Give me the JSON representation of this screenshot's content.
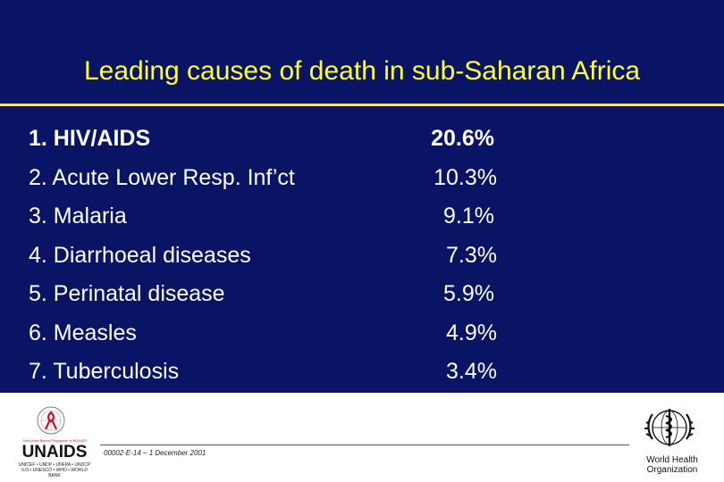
{
  "slide": {
    "title": "Leading causes of death in sub-Saharan Africa",
    "items": [
      {
        "label": "1. HIV/AIDS",
        "value": "20.6%"
      },
      {
        "label": "2. Acute Lower Resp. Inf’ct",
        "value": "10.3%"
      },
      {
        "label": "3. Malaria",
        "value": "9.1%"
      },
      {
        "label": "4. Diarrhoeal diseases",
        "value": "7.3%"
      },
      {
        "label": "5. Perinatal disease",
        "value": "5.9%"
      },
      {
        "label": "6. Measles",
        "value": "4.9%"
      },
      {
        "label": "7. Tuberculosis",
        "value": "3.4%"
      }
    ]
  },
  "footer": {
    "reference": "00002-E-14 – 1 December 2001",
    "unaids": {
      "tagline": "Joint United Nations Programme on HIV/AIDS",
      "wordmark": "UNAIDS",
      "partners_line1": "UNICEF • UNDP • UNFPA • UNDCP",
      "partners_line2": "ILO • UNESCO • WHO • WORLD BANK",
      "emblem_icon": "un-emblem-red-ribbon-icon"
    },
    "who": {
      "name_line1": "World Health",
      "name_line2": "Organization",
      "emblem_icon": "who-emblem-icon"
    }
  },
  "colors": {
    "background": "#0a1464",
    "title": "#ffff33",
    "title_rule": "#f2e08a",
    "text": "#ffffff",
    "ribbon": "#c8102e"
  }
}
